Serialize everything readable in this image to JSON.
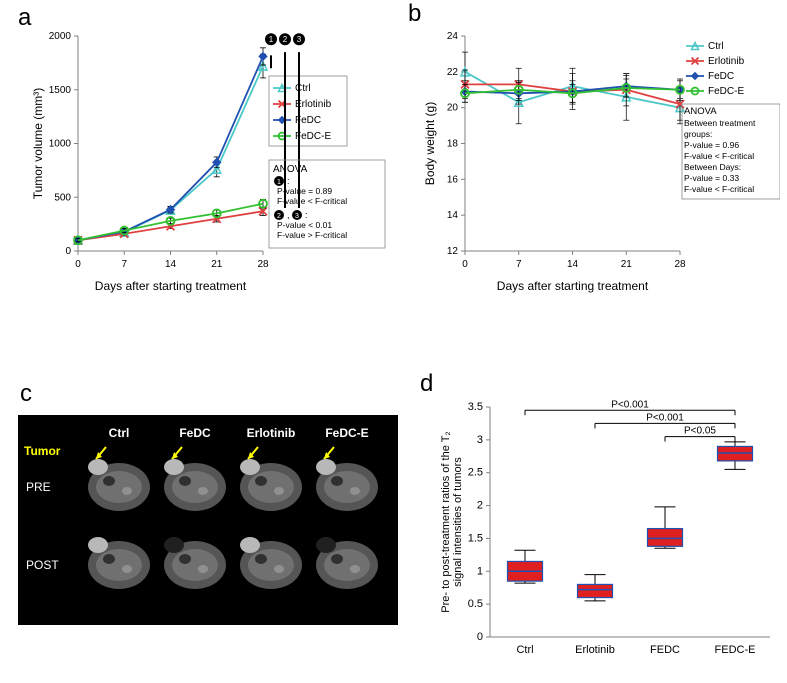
{
  "panels": {
    "a": "a",
    "b": "b",
    "c": "c",
    "d": "d"
  },
  "panel_a": {
    "type": "line",
    "x": [
      0,
      7,
      14,
      21,
      28
    ],
    "series": [
      {
        "name": "Ctrl",
        "y": [
          100,
          175,
          380,
          760,
          1720
        ],
        "err": [
          20,
          20,
          30,
          70,
          110
        ],
        "color": "#4bc8c8",
        "marker": "triangle-open"
      },
      {
        "name": "Erlotinib",
        "y": [
          100,
          160,
          230,
          300,
          370
        ],
        "err": [
          15,
          15,
          20,
          30,
          40
        ],
        "color": "#e04040",
        "marker": "x"
      },
      {
        "name": "FeDC",
        "y": [
          100,
          180,
          385,
          825,
          1810
        ],
        "err": [
          20,
          20,
          30,
          50,
          80
        ],
        "color": "#2050b0",
        "marker": "diamond"
      },
      {
        "name": "FeDC-E",
        "y": [
          100,
          190,
          280,
          350,
          440
        ],
        "err": [
          15,
          20,
          25,
          30,
          40
        ],
        "color": "#30c030",
        "marker": "circle-open"
      }
    ],
    "xlabel": "Days after starting treatment",
    "ylabel": "Tumor volume (mm³)",
    "ylim": [
      0,
      2000
    ],
    "ytick_step": 500,
    "xlim": [
      0,
      28
    ],
    "xtick_step": 7,
    "label_fontsize": 12,
    "tick_fontsize": 10,
    "legend_border": true,
    "anova": {
      "title": "ANOVA",
      "items": [
        "❶:",
        "P-value = 0.89",
        "F-value < F-critical",
        "❷, ❸:",
        "P-value < 0.01",
        "F-value > F-critical"
      ]
    },
    "markers_nums": [
      "❶",
      "❷",
      "❸"
    ],
    "background_color": "#ffffff",
    "axis_color": "#808080",
    "line_width": 1.8
  },
  "panel_b": {
    "type": "line",
    "x": [
      0,
      7,
      14,
      21,
      28
    ],
    "series": [
      {
        "name": "Ctrl",
        "y": [
          22.0,
          20.3,
          21.2,
          20.6,
          20.0
        ],
        "err": [
          1.1,
          1.2,
          1.0,
          1.3,
          0.9
        ],
        "color": "#4bc8c8",
        "marker": "triangle-open"
      },
      {
        "name": "Erlotinib",
        "y": [
          21.3,
          21.3,
          20.9,
          21.0,
          20.2
        ],
        "err": [
          0.8,
          0.9,
          1.0,
          0.9,
          0.9
        ],
        "color": "#e04040",
        "marker": "x"
      },
      {
        "name": "FeDC",
        "y": [
          20.9,
          20.8,
          20.9,
          21.2,
          21.0
        ],
        "err": [
          0.6,
          0.6,
          0.6,
          0.6,
          0.6
        ],
        "color": "#2050b0",
        "marker": "diamond"
      },
      {
        "name": "FeDC-E",
        "y": [
          20.8,
          21.0,
          20.8,
          21.1,
          21.0
        ],
        "err": [
          0.5,
          0.5,
          0.5,
          0.5,
          0.5
        ],
        "color": "#30c030",
        "marker": "circle-open"
      }
    ],
    "xlabel": "Days after starting treatment",
    "ylabel": "Body weight (g)",
    "ylim": [
      12,
      24
    ],
    "ytick_step": 2,
    "xlim": [
      0,
      28
    ],
    "xtick_step": 7,
    "label_fontsize": 12,
    "tick_fontsize": 10,
    "anova": {
      "title": "ANOVA",
      "lines": [
        "Between treatment",
        "groups:",
        "   P-value = 0.96",
        "   F-value < F-critical",
        "Between Days:",
        "   P-value = 0.33",
        "   F-value < F-critical"
      ]
    },
    "background_color": "#ffffff",
    "axis_color": "#808080",
    "line_width": 1.8
  },
  "panel_c": {
    "type": "image-grid",
    "background_color": "#000000",
    "columns": [
      "Ctrl",
      "FeDC",
      "Erlotinib",
      "FeDC-E"
    ],
    "rows": [
      "PRE",
      "POST"
    ],
    "tumor_label": "Tumor",
    "tumor_label_color": "#ffff00",
    "header_color": "#ffffff",
    "arrow_color": "#ffff00"
  },
  "panel_d": {
    "type": "boxplot",
    "categories": [
      "Ctrl",
      "Erlotinib",
      "FEDC",
      "FEDC-E"
    ],
    "boxes": [
      {
        "q1": 0.85,
        "median": 1.0,
        "q3": 1.15,
        "whisker_lo": 0.82,
        "whisker_hi": 1.32
      },
      {
        "q1": 0.6,
        "median": 0.72,
        "q3": 0.8,
        "whisker_lo": 0.55,
        "whisker_hi": 0.95
      },
      {
        "q1": 1.38,
        "median": 1.5,
        "q3": 1.65,
        "whisker_lo": 1.35,
        "whisker_hi": 1.98
      },
      {
        "q1": 2.68,
        "median": 2.8,
        "q3": 2.9,
        "whisker_lo": 2.55,
        "whisker_hi": 2.97
      }
    ],
    "box_fill": "#e02020",
    "box_stroke": "#2050b0",
    "median_color": "#2050b0",
    "whisker_color": "#000000",
    "ylabel": "Pre- to post-treatment ratios of the T₂\nsignal intensities of tumors",
    "ylim": [
      0,
      3.5
    ],
    "ytick_step": 0.5,
    "sig_bars": [
      {
        "from": 0,
        "to": 3,
        "y": 3.45,
        "label": "P<0.001"
      },
      {
        "from": 1,
        "to": 3,
        "y": 3.25,
        "label": "P<0.001"
      },
      {
        "from": 2,
        "to": 3,
        "y": 3.05,
        "label": "P<0.05"
      }
    ],
    "label_fontsize": 11,
    "tick_fontsize": 11,
    "axis_color": "#808080",
    "background_color": "#ffffff",
    "box_width": 0.5
  }
}
